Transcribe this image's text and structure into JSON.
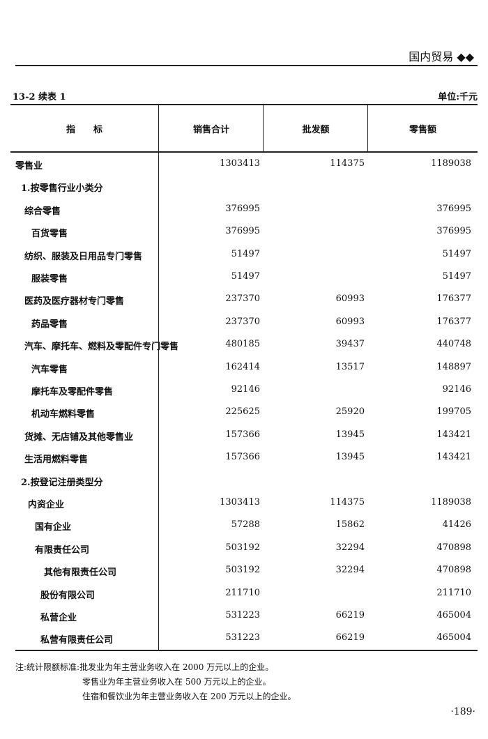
{
  "running_head": {
    "title": "国内贸易",
    "ornament": "◆◆"
  },
  "caption": "13-2 续表 1",
  "unit": "单位:千元",
  "table": {
    "headers": [
      "指　　标",
      "销售合计",
      "批发额",
      "零售额"
    ],
    "rows": [
      {
        "label": "零售业",
        "level": 0,
        "values": [
          "1303413",
          "114375",
          "1189038"
        ]
      },
      {
        "label": "1.按零售行业小类分",
        "level": 1,
        "values": [
          "",
          "",
          ""
        ]
      },
      {
        "label": "综合零售",
        "level": 2,
        "values": [
          "376995",
          "",
          "376995"
        ]
      },
      {
        "label": "百货零售",
        "level": 3,
        "values": [
          "376995",
          "",
          "376995"
        ]
      },
      {
        "label": "纺织、服装及日用品专门零售",
        "level": 2,
        "values": [
          "51497",
          "",
          "51497"
        ]
      },
      {
        "label": "服装零售",
        "level": 3,
        "values": [
          "51497",
          "",
          "51497"
        ]
      },
      {
        "label": "医药及医疗器材专门零售",
        "level": 2,
        "values": [
          "237370",
          "60993",
          "176377"
        ]
      },
      {
        "label": "药品零售",
        "level": 3,
        "values": [
          "237370",
          "60993",
          "176377"
        ]
      },
      {
        "label": "汽车、摩托车、燃料及零配件专门零售",
        "level": 2,
        "values": [
          "480185",
          "39437",
          "440748"
        ]
      },
      {
        "label": "汽车零售",
        "level": 3,
        "values": [
          "162414",
          "13517",
          "148897"
        ]
      },
      {
        "label": "摩托车及零配件零售",
        "level": 3,
        "values": [
          "92146",
          "",
          "92146"
        ]
      },
      {
        "label": "机动车燃料零售",
        "level": 3,
        "values": [
          "225625",
          "25920",
          "199705"
        ]
      },
      {
        "label": "货摊、无店铺及其他零售业",
        "level": 2,
        "values": [
          "157366",
          "13945",
          "143421"
        ]
      },
      {
        "label": "生活用燃料零售",
        "level": 2,
        "values": [
          "157366",
          "13945",
          "143421"
        ]
      },
      {
        "label": "2.按登记注册类型分",
        "level": 1,
        "values": [
          "",
          "",
          ""
        ]
      },
      {
        "label": "内资企业",
        "level": 4,
        "values": [
          "1303413",
          "114375",
          "1189038"
        ]
      },
      {
        "label": "国有企业",
        "level": 5,
        "values": [
          "57288",
          "15862",
          "41426"
        ]
      },
      {
        "label": "有限责任公司",
        "level": 5,
        "values": [
          "503192",
          "32294",
          "470898"
        ]
      },
      {
        "label": "其他有限责任公司",
        "level": 7,
        "values": [
          "503192",
          "32294",
          "470898"
        ]
      },
      {
        "label": "股份有限公司",
        "level": 6,
        "values": [
          "211710",
          "",
          "211710"
        ]
      },
      {
        "label": "私营企业",
        "level": 6,
        "values": [
          "531223",
          "66219",
          "465004"
        ]
      },
      {
        "label": "私营有限责任公司",
        "level": 6,
        "values": [
          "531223",
          "66219",
          "465004"
        ]
      }
    ]
  },
  "notes": [
    "注:统计限额标准:批发业为年主营业务收入在 2000 万元以上的企业。",
    "零售业为年主营业务收入在 500 万元以上的企业。",
    "住宿和餐饮业为年主营业务收入在 200 万元以上的企业。"
  ],
  "page_number": "·189·"
}
